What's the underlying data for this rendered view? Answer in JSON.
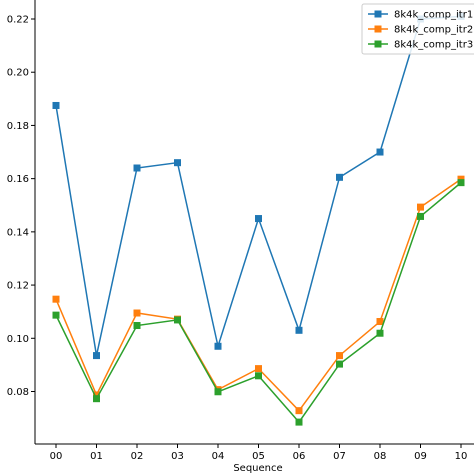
{
  "chart_data": {
    "type": "line",
    "xlabel": "Sequence",
    "ylabel": "",
    "categories": [
      "00",
      "01",
      "02",
      "03",
      "04",
      "05",
      "06",
      "07",
      "08",
      "09",
      "10"
    ],
    "ylim": [
      0.064,
      0.225
    ],
    "yticks": [
      "0.08",
      "0.10",
      "0.12",
      "0.14",
      "0.16",
      "0.18",
      "0.20",
      "0.22"
    ],
    "legend_position": "top-right",
    "grid": false,
    "series": [
      {
        "name": "8k4k_comp_itr1",
        "color": "#1f77b4",
        "values": [
          0.1875,
          0.0935,
          0.164,
          0.166,
          0.097,
          0.145,
          0.103,
          0.1605,
          0.17,
          0.22,
          0.221
        ]
      },
      {
        "name": "8k4k_comp_itr2",
        "color": "#ff7f0e",
        "values": [
          0.1147,
          0.0787,
          0.1095,
          0.1072,
          0.0807,
          0.0886,
          0.0728,
          0.0935,
          0.1063,
          0.1493,
          0.1598
        ]
      },
      {
        "name": "8k4k_comp_itr3",
        "color": "#2ca02c",
        "values": [
          0.1087,
          0.0773,
          0.1048,
          0.1069,
          0.0799,
          0.0859,
          0.0685,
          0.0903,
          0.1019,
          0.1458,
          0.1585
        ]
      }
    ]
  }
}
